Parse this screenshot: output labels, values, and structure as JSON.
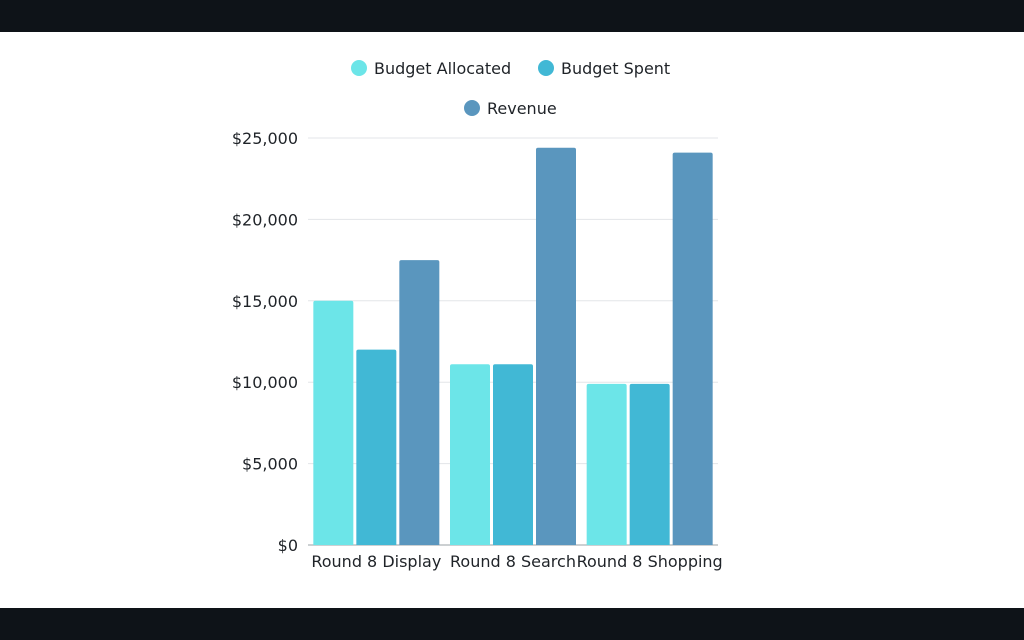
{
  "chart_data": {
    "type": "bar",
    "categories": [
      "Round 8 Display",
      "Round 8 Search",
      "Round 8 Shopping"
    ],
    "series": [
      {
        "name": "Budget Allocated",
        "color": "#6ce5e8",
        "values": [
          15000,
          11100,
          9900
        ]
      },
      {
        "name": "Budget Spent",
        "color": "#41b8d5",
        "values": [
          12000,
          11100,
          9900
        ]
      },
      {
        "name": "Revenue",
        "color": "#5a96be",
        "values": [
          17500,
          24400,
          24100
        ]
      }
    ],
    "y_ticks": [
      "$0",
      "$5,000",
      "$10,000",
      "$15,000",
      "$20,000",
      "$25,000"
    ],
    "ylim": [
      0,
      25000
    ],
    "grid": true,
    "legend_position": "top-center"
  }
}
